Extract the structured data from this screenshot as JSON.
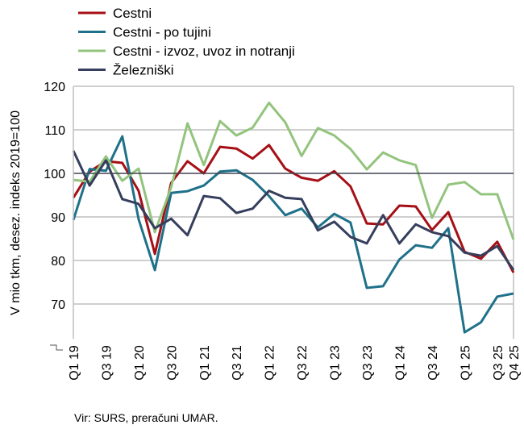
{
  "chart_data": {
    "type": "line",
    "title": "",
    "xlabel": "",
    "ylabel": "V mio tkm, desez. indeks 2019=100",
    "ylim": [
      62,
      120
    ],
    "yticks": [
      70,
      80,
      90,
      100,
      110,
      120
    ],
    "reference_line": 100,
    "grid": true,
    "legend": "top-left",
    "categories": [
      "Q1 19",
      "Q2 19",
      "Q3 19",
      "Q4 19",
      "Q1 20",
      "Q2 20",
      "Q3 20",
      "Q4 20",
      "Q1 21",
      "Q2 21",
      "Q3 21",
      "Q4 21",
      "Q1 22",
      "Q2 22",
      "Q3 22",
      "Q4 22",
      "Q1 23",
      "Q2 23",
      "Q3 23",
      "Q4 23",
      "Q1 24",
      "Q2 24",
      "Q3 24",
      "Q4 24",
      "Q1 25",
      "Q2 25",
      "Q3 25",
      "Q4 25"
    ],
    "tick_labels": [
      "Q1 19",
      "",
      "Q3 19",
      "",
      "Q1 20",
      "",
      "Q3 20",
      "",
      "Q1 21",
      "",
      "Q3 21",
      "",
      "Q1 22",
      "",
      "Q3 22",
      "",
      "Q1 23",
      "",
      "Q3 23",
      "",
      "Q1 24",
      "",
      "Q3 24",
      "",
      "Q1 25",
      "",
      "Q3 25",
      "Q4 25"
    ],
    "series": [
      {
        "name": "Cestni",
        "color": "#A50F15",
        "values": [
          94.4,
          100.4,
          102.8,
          102.4,
          96,
          81.5,
          97.8,
          102.8,
          100,
          106.1,
          105.7,
          103.4,
          106.5,
          101.1,
          99,
          98.3,
          100.5,
          97,
          88.5,
          88.3,
          92.6,
          92.4,
          87,
          91.1,
          82,
          80.4,
          84.3,
          77.2
        ]
      },
      {
        "name": "Cestni - po tujini",
        "color": "#1F7189",
        "values": [
          89.3,
          101,
          100.6,
          108.5,
          89.5,
          77.8,
          95.5,
          95.9,
          97.2,
          100.4,
          100.7,
          98.5,
          94.8,
          90.4,
          91.9,
          87.6,
          90.7,
          88.7,
          73.7,
          74.1,
          80.2,
          83.5,
          82.9,
          87.4,
          63.5,
          65.8,
          71.7,
          72.4
        ]
      },
      {
        "name": "Cestni - izvoz, uvoz in notranji",
        "color": "#93C47D",
        "values": [
          98.5,
          98.1,
          103.9,
          98.3,
          101.1,
          86.5,
          96.8,
          111.5,
          101.9,
          112,
          108.7,
          110.5,
          116.2,
          111.7,
          104,
          110.4,
          108.7,
          105.6,
          100.9,
          104.8,
          103,
          101.9,
          89.8,
          97.4,
          98,
          95.2,
          95.2,
          84.8
        ]
      },
      {
        "name": "Železniški",
        "color": "#353E5C",
        "values": [
          105.2,
          97.2,
          103,
          94.1,
          93,
          87.4,
          89.6,
          85.8,
          94.8,
          94.3,
          90.9,
          91.9,
          96,
          94.4,
          94.1,
          86.9,
          88.9,
          85.4,
          83.9,
          90.4,
          83.9,
          88.3,
          86.5,
          85.6,
          81.8,
          81.1,
          83.3,
          77.8
        ]
      }
    ]
  },
  "source": "Vir: SURS, preračuni UMAR."
}
